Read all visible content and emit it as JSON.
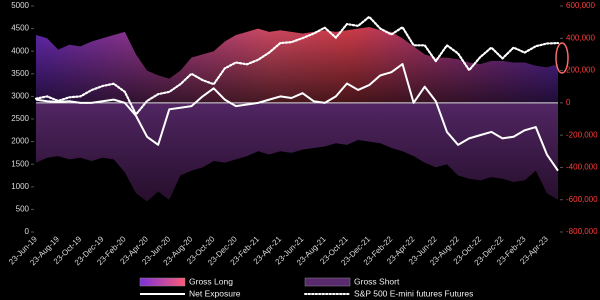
{
  "chart_data": {
    "type": "combo",
    "categories": [
      "23-Jun-19",
      null,
      "23-Aug-19",
      null,
      "23-Oct-19",
      null,
      "23-Dec-19",
      null,
      "23-Feb-20",
      null,
      "23-Apr-20",
      null,
      "23-Jun-20",
      null,
      "23-Aug-20",
      null,
      "23-Oct-20",
      null,
      "23-Dec-20",
      null,
      "23-Feb-21",
      null,
      "23-Apr-21",
      null,
      "23-Jun-21",
      null,
      "23-Aug-21",
      null,
      "23-Oct-21",
      null,
      "23-Dec-21",
      null,
      "23-Feb-22",
      null,
      "23-Apr-22",
      null,
      "23-Jun-22",
      null,
      "23-Aug-22",
      null,
      "23-Oct-22",
      null,
      "23-Dec-22",
      null,
      "23-Feb-23",
      null,
      "23-Apr-23",
      null
    ],
    "series": [
      {
        "name": "Gross Long",
        "type": "area",
        "axis": "y2",
        "color": "#ff5a78",
        "values": [
          420000,
          400000,
          330000,
          360000,
          350000,
          380000,
          400000,
          420000,
          440000,
          300000,
          200000,
          170000,
          150000,
          200000,
          280000,
          300000,
          320000,
          380000,
          420000,
          440000,
          460000,
          440000,
          450000,
          440000,
          430000,
          440000,
          450000,
          440000,
          450000,
          460000,
          470000,
          450000,
          440000,
          400000,
          350000,
          300000,
          280000,
          280000,
          270000,
          250000,
          240000,
          260000,
          260000,
          250000,
          250000,
          230000,
          220000,
          240000
        ]
      },
      {
        "name": "Gross Short",
        "type": "area",
        "axis": "y2",
        "color": "#5a2a6e",
        "values": [
          -370000,
          -340000,
          -330000,
          -350000,
          -340000,
          -360000,
          -340000,
          -350000,
          -430000,
          -560000,
          -610000,
          -550000,
          -600000,
          -450000,
          -420000,
          -400000,
          -360000,
          -370000,
          -350000,
          -330000,
          -300000,
          -320000,
          -300000,
          -310000,
          -290000,
          -280000,
          -270000,
          -250000,
          -260000,
          -230000,
          -240000,
          -250000,
          -280000,
          -300000,
          -330000,
          -370000,
          -400000,
          -380000,
          -450000,
          -470000,
          -480000,
          -460000,
          -470000,
          -490000,
          -480000,
          -420000,
          -560000,
          -600000
        ]
      },
      {
        "name": "Net Exposure",
        "type": "line",
        "axis": "y2",
        "color": "#ffffff",
        "style": "solid",
        "values": [
          20000,
          10000,
          5000,
          10000,
          0,
          0,
          10000,
          20000,
          0,
          -80000,
          -210000,
          -260000,
          -40000,
          -30000,
          -20000,
          40000,
          90000,
          20000,
          -20000,
          -10000,
          0,
          20000,
          40000,
          30000,
          60000,
          10000,
          0,
          40000,
          120000,
          80000,
          110000,
          170000,
          190000,
          240000,
          0,
          100000,
          10000,
          -180000,
          -260000,
          -220000,
          -200000,
          -180000,
          -220000,
          -210000,
          -170000,
          -150000,
          -320000,
          -420000
        ]
      },
      {
        "name": "S&P 500 E-mini futures Futures",
        "type": "line",
        "axis": "y",
        "color": "#ffffff",
        "style": "dotted",
        "values": [
          2950,
          3000,
          2900,
          2980,
          3000,
          3140,
          3230,
          3280,
          3100,
          2600,
          2900,
          3050,
          3100,
          3270,
          3500,
          3360,
          3270,
          3620,
          3750,
          3710,
          3810,
          3970,
          4180,
          4200,
          4290,
          4390,
          4520,
          4300,
          4600,
          4560,
          4760,
          4500,
          4370,
          4530,
          4130,
          4130,
          3780,
          4130,
          3950,
          3580,
          3870,
          4080,
          3840,
          4080,
          3970,
          4110,
          4170,
          4180
        ]
      }
    ],
    "ylim": [
      0,
      5000
    ],
    "yticks": [
      0,
      500,
      1000,
      1500,
      2000,
      2500,
      3000,
      3500,
      4000,
      4500,
      5000
    ],
    "y2lim": [
      -800000,
      600000
    ],
    "y2ticks": [
      {
        "value": -800000,
        "label": "-800,000"
      },
      {
        "value": -600000,
        "label": "-600,000"
      },
      {
        "value": -400000,
        "label": "-400,000"
      },
      {
        "value": -200000,
        "label": "-200,000"
      },
      {
        "value": 0,
        "label": "0"
      },
      {
        "value": 200000,
        "label": "200,000"
      },
      {
        "value": 400000,
        "label": "400,000"
      },
      {
        "value": 600000,
        "label": "600,000"
      }
    ],
    "y2color": "#ff3b3b",
    "grid": false
  }
}
